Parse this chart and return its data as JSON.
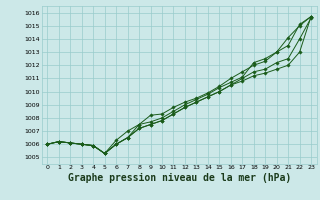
{
  "bg_color": "#cce8e8",
  "grid_color": "#99cccc",
  "line_color": "#1a5c1a",
  "marker_color": "#1a5c1a",
  "title": "Graphe pression niveau de la mer (hPa)",
  "title_fontsize": 7,
  "tick_fontsize": 5,
  "ylim": [
    1004.5,
    1016.5
  ],
  "xlim": [
    -0.5,
    23.5
  ],
  "yticks": [
    1005,
    1006,
    1007,
    1008,
    1009,
    1010,
    1011,
    1012,
    1013,
    1014,
    1015,
    1016
  ],
  "xticks": [
    0,
    1,
    2,
    3,
    4,
    5,
    6,
    7,
    8,
    9,
    10,
    11,
    12,
    13,
    14,
    15,
    16,
    17,
    18,
    19,
    20,
    21,
    22,
    23
  ],
  "series": [
    [
      1006.0,
      1006.2,
      1006.1,
      1006.0,
      1005.9,
      1005.3,
      1006.0,
      1006.5,
      1007.5,
      1007.7,
      1008.0,
      1008.5,
      1009.0,
      1009.4,
      1009.8,
      1010.3,
      1010.7,
      1011.1,
      1012.2,
      1012.5,
      1013.0,
      1014.1,
      1015.0,
      1015.7
    ],
    [
      1006.0,
      1006.2,
      1006.1,
      1006.0,
      1005.9,
      1005.3,
      1006.3,
      1007.0,
      1007.5,
      1008.2,
      1008.3,
      1008.8,
      1009.2,
      1009.5,
      1009.9,
      1010.4,
      1011.0,
      1011.5,
      1012.0,
      1012.3,
      1013.0,
      1013.5,
      1015.1,
      1015.7
    ],
    [
      1006.0,
      1006.2,
      1006.1,
      1006.0,
      1005.9,
      1005.3,
      1006.0,
      1006.5,
      1007.2,
      1007.5,
      1007.8,
      1008.3,
      1008.8,
      1009.2,
      1009.6,
      1010.0,
      1010.5,
      1011.0,
      1011.5,
      1011.7,
      1012.2,
      1012.5,
      1014.0,
      1015.6
    ],
    [
      1006.0,
      1006.2,
      1006.1,
      1006.0,
      1005.9,
      1005.3,
      1006.0,
      1006.5,
      1007.2,
      1007.5,
      1007.8,
      1008.3,
      1008.8,
      1009.2,
      1009.6,
      1010.0,
      1010.5,
      1010.8,
      1011.2,
      1011.4,
      1011.7,
      1012.0,
      1013.0,
      1015.7
    ]
  ]
}
